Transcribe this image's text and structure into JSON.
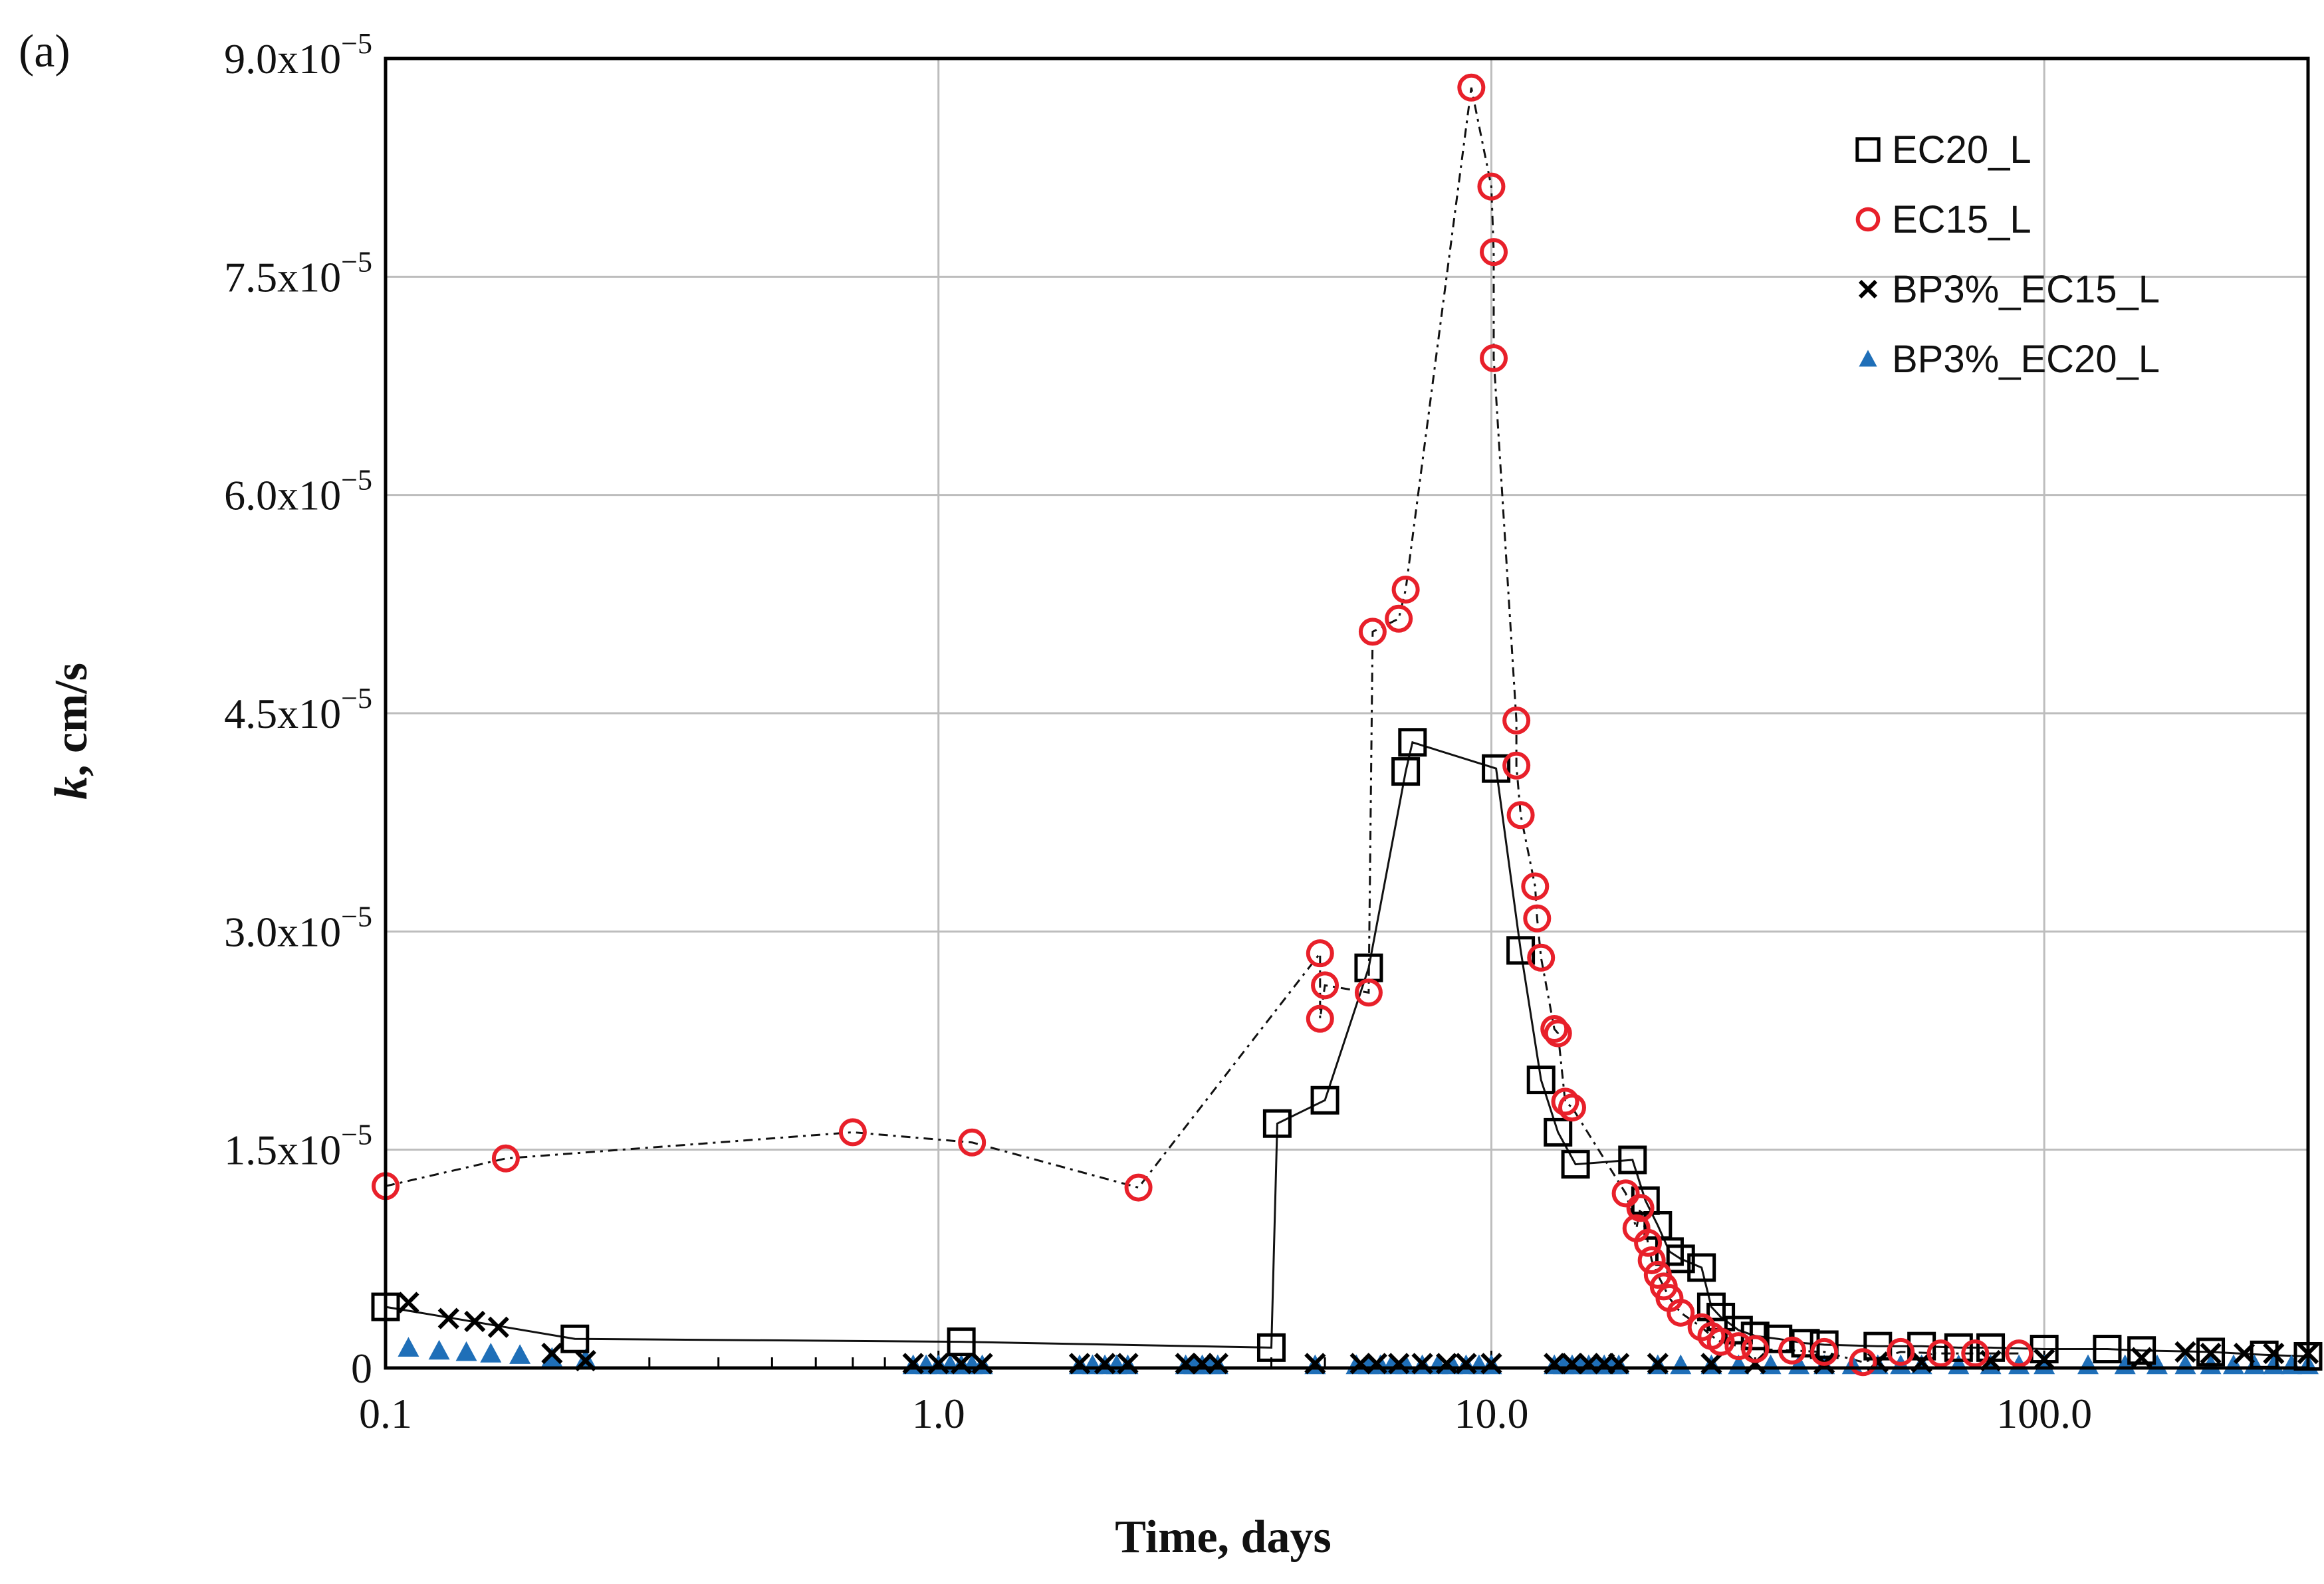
{
  "chart_data": {
    "type": "scatter",
    "panel_label": "(a)",
    "xlabel": "Time, days",
    "ylabel_italic": "k",
    "ylabel_rest": ", cm/s",
    "x_scale": "log",
    "xlim": [
      0.1,
      300
    ],
    "ylim": [
      0,
      9e-05
    ],
    "x_ticks": [
      {
        "value": 0.1,
        "label": "0.1"
      },
      {
        "value": 1,
        "label": "1.0"
      },
      {
        "value": 10,
        "label": "10.0"
      },
      {
        "value": 100,
        "label": "100.0"
      }
    ],
    "y_ticks": [
      {
        "value": 0,
        "base": "0",
        "exp": ""
      },
      {
        "value": 1.5e-05,
        "base": "1.5x10",
        "exp": "−5"
      },
      {
        "value": 3e-05,
        "base": "3.0x10",
        "exp": "−5"
      },
      {
        "value": 4.5e-05,
        "base": "4.5x10",
        "exp": "−5"
      },
      {
        "value": 6e-05,
        "base": "6.0x10",
        "exp": "−5"
      },
      {
        "value": 7.5e-05,
        "base": "7.5x10",
        "exp": "−5"
      },
      {
        "value": 9e-05,
        "base": "9.0x10",
        "exp": "−5"
      }
    ],
    "grid": true,
    "legend_position": "top-right",
    "series": [
      {
        "name": "EC20_L",
        "marker": "square",
        "color": "#000000",
        "line": "solid",
        "x": [
          0.1,
          0.22,
          1.1,
          4.0,
          4.1,
          5.0,
          6.0,
          7.0,
          7.2,
          10.2,
          11.3,
          12.3,
          13.2,
          14.2,
          18.0,
          19.0,
          20.0,
          21.0,
          22.0,
          24.0,
          25.0,
          26.0,
          28.0,
          30.0,
          33.0,
          37.0,
          40.0,
          50.0,
          60.0,
          70.0,
          80.0,
          100.0,
          130.0,
          150.0,
          200.0,
          250.0,
          300.0
        ],
        "y": [
          4.2e-06,
          2e-06,
          1.8e-06,
          1.4e-06,
          1.68e-05,
          1.84e-05,
          2.75e-05,
          4.1e-05,
          4.3e-05,
          4.12e-05,
          2.87e-05,
          1.98e-05,
          1.62e-05,
          1.4e-05,
          1.43e-05,
          1.15e-05,
          9.8e-06,
          8e-06,
          7.5e-06,
          6.9e-06,
          4.2e-06,
          3.5e-06,
          2.6e-06,
          2.2e-06,
          2e-06,
          1.7e-06,
          1.6e-06,
          1.5e-06,
          1.5e-06,
          1.4e-06,
          1.4e-06,
          1.3e-06,
          1.3e-06,
          1.2e-06,
          1.1e-06,
          9e-07,
          8e-07
        ]
      },
      {
        "name": "EC15_L",
        "marker": "circle",
        "color": "#e8202a",
        "line": "dash-dot",
        "x": [
          0.1,
          0.165,
          0.7,
          1.15,
          2.3,
          4.9,
          4.9,
          5.0,
          6.0,
          6.1,
          6.8,
          7.0,
          9.2,
          10.0,
          10.1,
          10.1,
          11.1,
          11.1,
          11.3,
          12.0,
          12.1,
          12.3,
          13.0,
          13.2,
          13.6,
          14.0,
          17.5,
          18.3,
          18.6,
          19.2,
          19.5,
          20.0,
          20.5,
          21.0,
          22.0,
          24.0,
          25.0,
          26.0,
          28.0,
          30.0,
          35.0,
          40.0,
          47.0,
          55.0,
          65.0,
          75.0,
          90.0
        ],
        "y": [
          1.25e-05,
          1.44e-05,
          1.62e-05,
          1.55e-05,
          1.24e-05,
          2.85e-05,
          2.4e-05,
          2.63e-05,
          2.58e-05,
          5.06e-05,
          5.15e-05,
          5.35e-05,
          8.8e-05,
          8.12e-05,
          7.67e-05,
          6.94e-05,
          4.45e-05,
          4.14e-05,
          3.8e-05,
          3.31e-05,
          3.09e-05,
          2.82e-05,
          2.33e-05,
          2.3e-05,
          1.83e-05,
          1.79e-05,
          1.2e-05,
          9.6e-06,
          1.1e-05,
          8.6e-06,
          7.4e-06,
          6.4e-06,
          5.6e-06,
          4.8e-06,
          3.8e-06,
          2.8e-06,
          2.2e-06,
          1.8e-06,
          1.5e-06,
          1.3e-06,
          1.2e-06,
          1.1e-06,
          4e-07,
          1.1e-06,
          1e-06,
          1e-06,
          1e-06
        ]
      },
      {
        "name": "BP3%_EC15_L",
        "marker": "x",
        "color": "#000000",
        "line": "none",
        "x": [
          0.11,
          0.13,
          0.145,
          0.16,
          0.2,
          0.23,
          0.9,
          1.0,
          1.1,
          1.2,
          1.8,
          2.0,
          2.2,
          2.8,
          3.0,
          3.2,
          4.8,
          5.8,
          6.2,
          6.8,
          7.5,
          8.3,
          9.0,
          10.0,
          13.0,
          14.0,
          15.0,
          16.0,
          17.0,
          20.0,
          25.0,
          30.0,
          40.0,
          50.0,
          60.0,
          80.0,
          100.0,
          150.0,
          180.0,
          200.0,
          230.0,
          260.0,
          300.0
        ],
        "y": [
          4.5e-06,
          3.4e-06,
          3.2e-06,
          2.8e-06,
          1e-06,
          5e-07,
          3e-07,
          3e-07,
          3e-07,
          3e-07,
          3e-07,
          3e-07,
          3e-07,
          3e-07,
          3e-07,
          3e-07,
          3e-07,
          3e-07,
          3e-07,
          3e-07,
          3e-07,
          3e-07,
          3e-07,
          3e-07,
          3e-07,
          3e-07,
          3e-07,
          3e-07,
          3e-07,
          3e-07,
          3e-07,
          3e-07,
          3e-07,
          4e-07,
          4e-07,
          5e-07,
          6e-07,
          7e-07,
          1.1e-06,
          1e-06,
          1e-06,
          1e-06,
          1e-06
        ]
      },
      {
        "name": "BP3%_EC20_L",
        "marker": "triangle",
        "color": "#1f6fb8",
        "line": "none",
        "x": [
          0.11,
          0.125,
          0.14,
          0.155,
          0.175,
          0.2,
          0.23,
          0.9,
          0.95,
          1.0,
          1.05,
          1.1,
          1.15,
          1.2,
          1.8,
          1.9,
          2.0,
          2.1,
          2.2,
          2.8,
          2.9,
          3.0,
          3.1,
          3.2,
          4.8,
          5.7,
          6.0,
          6.3,
          6.6,
          7.0,
          7.5,
          8.0,
          8.5,
          9.0,
          9.5,
          10.0,
          13.0,
          13.5,
          14.0,
          14.5,
          15.0,
          15.5,
          16.0,
          16.5,
          17.0,
          20.0,
          22.0,
          25.0,
          28.0,
          32.0,
          36.0,
          40.0,
          45.0,
          50.0,
          55.0,
          60.0,
          70.0,
          80.0,
          90.0,
          100.0,
          120.0,
          140.0,
          160.0,
          180.0,
          200.0,
          220.0,
          240.0,
          260.0,
          280.0,
          300.0
        ],
        "y": [
          1.4e-06,
          1.2e-06,
          1.1e-06,
          1e-06,
          9e-07,
          7e-07,
          6e-07,
          2e-07,
          2e-07,
          2e-07,
          2e-07,
          2e-07,
          2e-07,
          2e-07,
          2e-07,
          2e-07,
          2e-07,
          2e-07,
          2e-07,
          2e-07,
          2e-07,
          2e-07,
          2e-07,
          2e-07,
          2e-07,
          2e-07,
          2e-07,
          2e-07,
          2e-07,
          2e-07,
          2e-07,
          2e-07,
          2e-07,
          2e-07,
          2e-07,
          2e-07,
          2e-07,
          2e-07,
          2e-07,
          2e-07,
          2e-07,
          2e-07,
          2e-07,
          2e-07,
          2e-07,
          2e-07,
          2e-07,
          2e-07,
          2e-07,
          2e-07,
          2e-07,
          2e-07,
          2e-07,
          2e-07,
          2e-07,
          2e-07,
          2e-07,
          2e-07,
          2e-07,
          2e-07,
          2e-07,
          2e-07,
          2e-07,
          2e-07,
          2e-07,
          2e-07,
          2e-07,
          2e-07,
          2e-07,
          2e-07
        ]
      }
    ]
  }
}
